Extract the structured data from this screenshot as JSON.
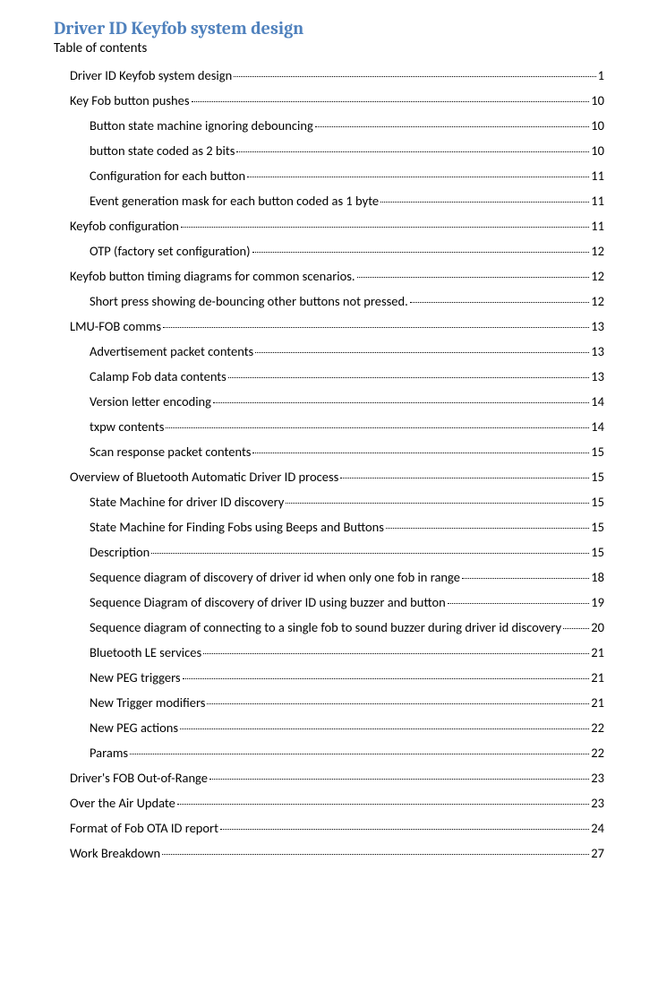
{
  "title": "Driver ID Keyfob system design",
  "subtitle": "Table of contents",
  "colors": {
    "title": "#4f81bd",
    "text": "#000000",
    "background": "#ffffff"
  },
  "toc": [
    {
      "level": 1,
      "label": "Driver ID Keyfob system design",
      "page": "1"
    },
    {
      "level": 1,
      "label": "Key Fob button pushes",
      "page": "10"
    },
    {
      "level": 2,
      "label": "Button state machine ignoring debouncing",
      "page": "10"
    },
    {
      "level": 2,
      "label": "button state coded as 2 bits",
      "page": "10"
    },
    {
      "level": 2,
      "label": "Configuration for each button",
      "page": "11"
    },
    {
      "level": 2,
      "label": "Event generation mask for each button coded as 1 byte",
      "page": "11"
    },
    {
      "level": 1,
      "label": "Keyfob configuration",
      "page": "11"
    },
    {
      "level": 2,
      "label": "OTP (factory set configuration)",
      "page": "12"
    },
    {
      "level": 1,
      "label": "Keyfob button timing diagrams for common scenarios.",
      "page": "12"
    },
    {
      "level": 2,
      "label": "Short press showing de-bouncing other buttons not pressed.",
      "page": "12"
    },
    {
      "level": 1,
      "label": "LMU-FOB comms",
      "page": "13"
    },
    {
      "level": 2,
      "label": "Advertisement packet contents",
      "page": "13"
    },
    {
      "level": 2,
      "label": "Calamp Fob data contents",
      "page": "13"
    },
    {
      "level": 2,
      "label": "Version letter encoding",
      "page": "14"
    },
    {
      "level": 2,
      "label": "txpw contents",
      "page": "14"
    },
    {
      "level": 2,
      "label": "Scan response packet contents",
      "page": "15"
    },
    {
      "level": 1,
      "label": "Overview of Bluetooth Automatic Driver ID process",
      "page": "15"
    },
    {
      "level": 2,
      "label": "State Machine for driver ID discovery",
      "page": "15"
    },
    {
      "level": 2,
      "label": "State Machine for Finding Fobs using Beeps and Buttons",
      "page": "15"
    },
    {
      "level": 2,
      "label": "Description",
      "page": "15"
    },
    {
      "level": 2,
      "label": "Sequence diagram of discovery of driver id when only one fob in range",
      "page": "18"
    },
    {
      "level": 2,
      "label": "Sequence Diagram of discovery of driver ID using buzzer and button",
      "page": "19"
    },
    {
      "level": 2,
      "label": "Sequence diagram of connecting to a single fob to sound buzzer during driver id discovery",
      "page": "20"
    },
    {
      "level": 2,
      "label": "Bluetooth LE services",
      "page": "21"
    },
    {
      "level": 2,
      "label": "New PEG triggers",
      "page": "21"
    },
    {
      "level": 2,
      "label": "New Trigger modifiers",
      "page": "21"
    },
    {
      "level": 2,
      "label": "New PEG actions",
      "page": "22"
    },
    {
      "level": 2,
      "label": "Params",
      "page": "22"
    },
    {
      "level": 1,
      "label": "Driver's FOB Out-of-Range",
      "page": "23"
    },
    {
      "level": 1,
      "label": "Over the Air Update",
      "page": "23"
    },
    {
      "level": 1,
      "label": "Format of Fob OTA ID report",
      "page": "24"
    },
    {
      "level": 1,
      "label": "Work Breakdown",
      "page": "27"
    }
  ]
}
